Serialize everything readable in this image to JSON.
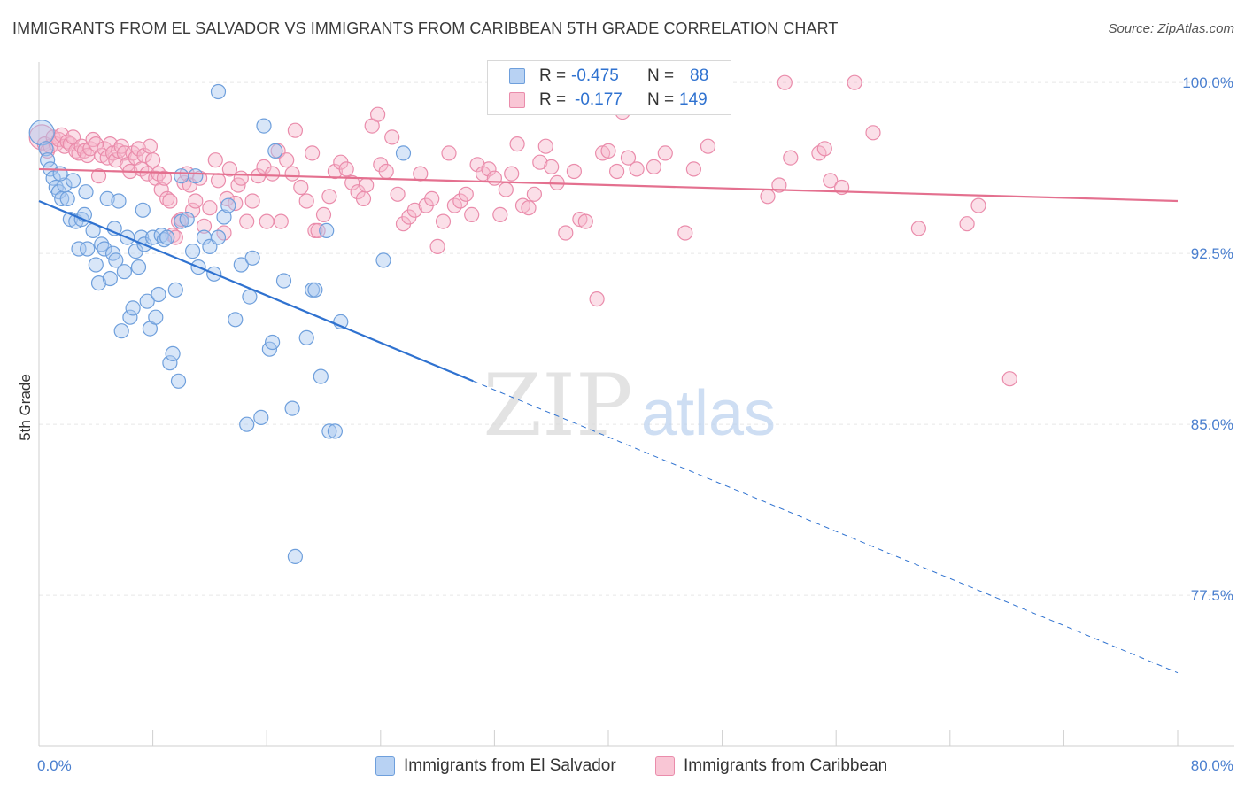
{
  "header": {
    "title": "IMMIGRANTS FROM EL SALVADOR VS IMMIGRANTS FROM CARIBBEAN 5TH GRADE CORRELATION CHART",
    "source": "Source: ZipAtlas.com"
  },
  "watermark": {
    "part1": "ZIP",
    "part2": "atlas"
  },
  "colors": {
    "blue_fill": "#a9c8f0",
    "blue_stroke": "#6e9fdc",
    "blue_line": "#2f72d0",
    "pink_fill": "#f6b9cc",
    "pink_stroke": "#ea8cab",
    "pink_line": "#e4708f",
    "grid": "#e6e6e6",
    "tick_label": "#4a7fcf",
    "axis": "#cfcfcf"
  },
  "legend": {
    "r_label": "R =",
    "n_label": "N =",
    "series": [
      {
        "r": "-0.475",
        "n": "88",
        "swatch_fill": "#b8d2f3",
        "swatch_stroke": "#6e9fdc"
      },
      {
        "r": "-0.177",
        "n": "149",
        "swatch_fill": "#f9c6d5",
        "swatch_stroke": "#ea8cab"
      }
    ]
  },
  "chart_data": {
    "type": "scatter",
    "title": "IMMIGRANTS FROM EL SALVADOR VS IMMIGRANTS FROM CARIBBEAN 5TH GRADE CORRELATION CHART",
    "xlabel": "",
    "ylabel": "5th Grade",
    "xlim": [
      0,
      80
    ],
    "ylim": [
      70.9,
      100.9
    ],
    "x_ticks": [
      0,
      8,
      16,
      24,
      32,
      40,
      48,
      56,
      64,
      72,
      80
    ],
    "x_tick_labels": {
      "start": "0.0%",
      "end": "80.0%"
    },
    "y_ticks": [
      100,
      92.5,
      85,
      77.5
    ],
    "y_tick_labels": [
      "100.0%",
      "92.5%",
      "85.0%",
      "77.5%"
    ],
    "grid": true,
    "legend_position": "top-center",
    "series": [
      {
        "name": "Immigrants from El Salvador",
        "r": -0.475,
        "n": 88,
        "trend": {
          "x": [
            0,
            30.5,
            80
          ],
          "y": [
            94.8,
            86.9,
            74.1
          ],
          "solid_until": 30.5
        },
        "points": [
          [
            0.2,
            97.8
          ],
          [
            0.5,
            97.1
          ],
          [
            0.6,
            96.6
          ],
          [
            0.8,
            96.2
          ],
          [
            1.0,
            95.8
          ],
          [
            1.2,
            95.4
          ],
          [
            1.4,
            95.2
          ],
          [
            1.6,
            94.9
          ],
          [
            1.8,
            95.5
          ],
          [
            2.0,
            94.9
          ],
          [
            2.2,
            94.0
          ],
          [
            2.4,
            95.7
          ],
          [
            2.6,
            93.9
          ],
          [
            2.8,
            92.7
          ],
          [
            3.0,
            94.0
          ],
          [
            3.2,
            94.2
          ],
          [
            3.4,
            92.7
          ],
          [
            3.8,
            93.5
          ],
          [
            4.0,
            92.0
          ],
          [
            4.2,
            91.2
          ],
          [
            4.4,
            92.9
          ],
          [
            4.6,
            92.7
          ],
          [
            4.8,
            94.9
          ],
          [
            5.0,
            91.4
          ],
          [
            5.2,
            92.5
          ],
          [
            5.4,
            92.2
          ],
          [
            5.6,
            94.8
          ],
          [
            5.8,
            89.1
          ],
          [
            6.0,
            91.7
          ],
          [
            6.2,
            93.2
          ],
          [
            6.4,
            89.7
          ],
          [
            6.6,
            90.1
          ],
          [
            6.8,
            92.6
          ],
          [
            7.0,
            91.9
          ],
          [
            7.2,
            93.2
          ],
          [
            7.4,
            92.9
          ],
          [
            7.6,
            90.4
          ],
          [
            7.8,
            89.2
          ],
          [
            8.0,
            93.2
          ],
          [
            8.2,
            89.7
          ],
          [
            8.4,
            90.7
          ],
          [
            8.6,
            93.3
          ],
          [
            8.8,
            93.1
          ],
          [
            9.0,
            93.2
          ],
          [
            9.2,
            87.7
          ],
          [
            9.4,
            88.1
          ],
          [
            9.6,
            90.9
          ],
          [
            9.8,
            86.9
          ],
          [
            10.0,
            93.9
          ],
          [
            10.4,
            94.0
          ],
          [
            10.8,
            92.6
          ],
          [
            11.2,
            91.9
          ],
          [
            11.6,
            93.2
          ],
          [
            12.0,
            92.8
          ],
          [
            12.3,
            91.6
          ],
          [
            12.6,
            93.2
          ],
          [
            13.0,
            94.1
          ],
          [
            13.3,
            94.6
          ],
          [
            13.8,
            89.6
          ],
          [
            14.2,
            92.0
          ],
          [
            14.6,
            85.0
          ],
          [
            14.8,
            90.6
          ],
          [
            15.0,
            92.3
          ],
          [
            15.6,
            85.3
          ],
          [
            16.2,
            88.3
          ],
          [
            16.4,
            88.6
          ],
          [
            16.6,
            97.0
          ],
          [
            17.2,
            91.3
          ],
          [
            17.8,
            85.7
          ],
          [
            18.0,
            79.2
          ],
          [
            18.8,
            88.8
          ],
          [
            19.2,
            90.9
          ],
          [
            19.4,
            90.9
          ],
          [
            19.8,
            87.1
          ],
          [
            20.2,
            93.5
          ],
          [
            20.4,
            84.7
          ],
          [
            20.8,
            84.7
          ],
          [
            21.2,
            89.5
          ],
          [
            24.2,
            92.2
          ],
          [
            25.6,
            96.9
          ],
          [
            1.5,
            96.0
          ],
          [
            3.3,
            95.2
          ],
          [
            5.3,
            93.6
          ],
          [
            7.3,
            94.4
          ],
          [
            11.0,
            95.9
          ],
          [
            15.8,
            98.1
          ],
          [
            12.6,
            99.6
          ],
          [
            10.0,
            95.9
          ]
        ]
      },
      {
        "name": "Immigrants from Caribbean",
        "r": -0.177,
        "n": 149,
        "trend": {
          "x": [
            0,
            80
          ],
          "y": [
            96.2,
            94.8
          ]
        },
        "points": [
          [
            0.2,
            97.6
          ],
          [
            0.4,
            97.3
          ],
          [
            0.6,
            97.0
          ],
          [
            0.8,
            97.2
          ],
          [
            1.0,
            97.6
          ],
          [
            1.2,
            97.3
          ],
          [
            1.4,
            97.5
          ],
          [
            1.6,
            97.7
          ],
          [
            1.8,
            97.2
          ],
          [
            2.0,
            97.4
          ],
          [
            2.2,
            97.3
          ],
          [
            2.4,
            97.6
          ],
          [
            2.6,
            97.0
          ],
          [
            2.8,
            96.9
          ],
          [
            3.0,
            97.2
          ],
          [
            3.2,
            97.0
          ],
          [
            3.4,
            96.8
          ],
          [
            3.6,
            97.1
          ],
          [
            3.8,
            97.5
          ],
          [
            4.0,
            97.3
          ],
          [
            4.2,
            95.9
          ],
          [
            4.4,
            96.8
          ],
          [
            4.6,
            97.1
          ],
          [
            4.8,
            96.7
          ],
          [
            5.0,
            97.3
          ],
          [
            5.2,
            96.9
          ],
          [
            5.4,
            96.6
          ],
          [
            5.6,
            97.0
          ],
          [
            5.8,
            97.2
          ],
          [
            6.0,
            96.9
          ],
          [
            6.2,
            96.4
          ],
          [
            6.4,
            96.1
          ],
          [
            6.6,
            96.9
          ],
          [
            6.8,
            96.7
          ],
          [
            7.0,
            97.1
          ],
          [
            7.2,
            96.2
          ],
          [
            7.4,
            96.8
          ],
          [
            7.6,
            96.0
          ],
          [
            7.8,
            97.2
          ],
          [
            8.0,
            96.6
          ],
          [
            8.2,
            95.8
          ],
          [
            8.4,
            96.0
          ],
          [
            8.6,
            95.3
          ],
          [
            8.8,
            95.8
          ],
          [
            9.0,
            94.9
          ],
          [
            9.2,
            94.8
          ],
          [
            9.4,
            93.3
          ],
          [
            9.6,
            93.2
          ],
          [
            9.8,
            93.9
          ],
          [
            10.0,
            94.0
          ],
          [
            10.2,
            95.6
          ],
          [
            10.4,
            96.0
          ],
          [
            10.6,
            95.5
          ],
          [
            10.8,
            94.4
          ],
          [
            11.0,
            94.8
          ],
          [
            11.3,
            95.8
          ],
          [
            11.6,
            93.7
          ],
          [
            12.0,
            94.5
          ],
          [
            12.4,
            96.6
          ],
          [
            12.6,
            95.7
          ],
          [
            13.0,
            93.4
          ],
          [
            13.2,
            94.9
          ],
          [
            13.4,
            96.2
          ],
          [
            13.8,
            94.7
          ],
          [
            14.0,
            95.5
          ],
          [
            14.2,
            95.8
          ],
          [
            14.6,
            93.9
          ],
          [
            15.0,
            94.8
          ],
          [
            15.4,
            95.9
          ],
          [
            15.8,
            96.3
          ],
          [
            16.0,
            93.9
          ],
          [
            16.4,
            96.0
          ],
          [
            16.8,
            97.0
          ],
          [
            17.0,
            93.9
          ],
          [
            17.4,
            96.6
          ],
          [
            17.8,
            96.0
          ],
          [
            18.0,
            97.9
          ],
          [
            18.4,
            95.4
          ],
          [
            18.8,
            94.8
          ],
          [
            19.2,
            96.9
          ],
          [
            19.4,
            93.5
          ],
          [
            19.6,
            93.5
          ],
          [
            20.0,
            94.2
          ],
          [
            20.4,
            95.0
          ],
          [
            20.8,
            96.1
          ],
          [
            21.2,
            96.5
          ],
          [
            21.6,
            96.2
          ],
          [
            22.0,
            95.6
          ],
          [
            22.4,
            95.2
          ],
          [
            22.8,
            94.9
          ],
          [
            23.0,
            95.5
          ],
          [
            23.4,
            98.1
          ],
          [
            23.8,
            98.6
          ],
          [
            24.0,
            96.4
          ],
          [
            24.4,
            96.1
          ],
          [
            24.8,
            97.6
          ],
          [
            25.2,
            95.1
          ],
          [
            25.6,
            93.8
          ],
          [
            26.0,
            94.1
          ],
          [
            26.4,
            94.4
          ],
          [
            26.8,
            96.0
          ],
          [
            27.2,
            94.6
          ],
          [
            27.6,
            94.9
          ],
          [
            28.0,
            92.8
          ],
          [
            28.4,
            93.9
          ],
          [
            28.8,
            96.9
          ],
          [
            29.2,
            94.6
          ],
          [
            29.6,
            94.8
          ],
          [
            30.0,
            95.1
          ],
          [
            30.4,
            94.2
          ],
          [
            30.8,
            96.4
          ],
          [
            31.2,
            96.0
          ],
          [
            31.6,
            96.2
          ],
          [
            32.0,
            95.8
          ],
          [
            32.4,
            94.2
          ],
          [
            32.8,
            95.3
          ],
          [
            33.2,
            96.0
          ],
          [
            33.6,
            97.3
          ],
          [
            34.0,
            94.6
          ],
          [
            34.4,
            94.5
          ],
          [
            34.8,
            95.1
          ],
          [
            35.2,
            96.5
          ],
          [
            35.6,
            97.2
          ],
          [
            36.0,
            96.3
          ],
          [
            36.4,
            95.6
          ],
          [
            37.0,
            93.4
          ],
          [
            37.6,
            96.1
          ],
          [
            38.0,
            94.0
          ],
          [
            38.4,
            93.9
          ],
          [
            39.2,
            90.5
          ],
          [
            39.6,
            96.9
          ],
          [
            40.0,
            97.0
          ],
          [
            40.6,
            96.1
          ],
          [
            41.4,
            96.7
          ],
          [
            42.0,
            96.2
          ],
          [
            43.2,
            96.3
          ],
          [
            44.0,
            96.9
          ],
          [
            45.4,
            93.4
          ],
          [
            46.0,
            96.2
          ],
          [
            47.0,
            97.2
          ],
          [
            52.0,
            95.5
          ],
          [
            54.8,
            96.9
          ],
          [
            55.2,
            97.1
          ],
          [
            55.6,
            95.7
          ],
          [
            56.4,
            95.4
          ],
          [
            58.6,
            97.8
          ],
          [
            61.8,
            93.6
          ],
          [
            65.2,
            93.8
          ],
          [
            66.0,
            94.6
          ],
          [
            68.2,
            87.0
          ],
          [
            52.4,
            100.0
          ],
          [
            57.3,
            100.0
          ],
          [
            41.0,
            98.7
          ],
          [
            52.8,
            96.7
          ],
          [
            51.2,
            95.0
          ]
        ]
      }
    ]
  },
  "bottom_legend": [
    {
      "label": "Immigrants from El Salvador"
    },
    {
      "label": "Immigrants from Caribbean"
    }
  ]
}
